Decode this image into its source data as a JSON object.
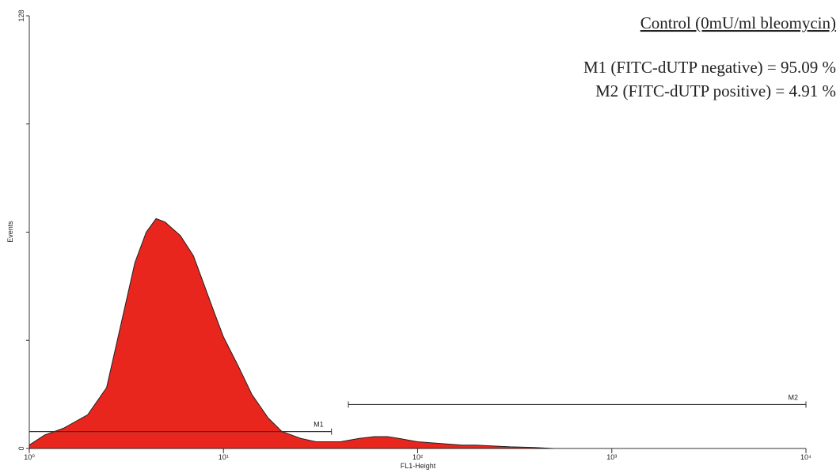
{
  "chart_data": {
    "type": "area",
    "title": "Control (0mU/ml bleomycin)",
    "annotations": [
      "M1 (FITC-dUTP negative) = 95.09 %",
      "M2 (FITC-dUTP positive) = 4.91 %"
    ],
    "x_label": "FL1-Height",
    "y_label": "Events",
    "x_scale": "log",
    "color": "#e8261e",
    "x": [
      1,
      1.2,
      1.5,
      2,
      2.5,
      3,
      3.5,
      4,
      4.5,
      5,
      6,
      7,
      8,
      9,
      10,
      12,
      14,
      17,
      20,
      25,
      30,
      40,
      50,
      60,
      70,
      80,
      100,
      130,
      170,
      200,
      300,
      400,
      500
    ],
    "values": [
      1,
      4,
      6,
      10,
      18,
      38,
      55,
      64,
      68,
      67,
      63,
      57,
      48,
      40,
      33,
      24,
      16,
      9,
      5,
      3,
      2,
      2,
      3,
      3.5,
      3.5,
      3,
      2,
      1.5,
      1,
      1,
      0.5,
      0.3,
      0
    ],
    "xlim": [
      1,
      10000
    ],
    "xticks": [
      {
        "value": 1,
        "label": "10⁰"
      },
      {
        "value": 10,
        "label": "10¹"
      },
      {
        "value": 100,
        "label": "10²"
      },
      {
        "value": 1000,
        "label": "10³"
      },
      {
        "value": 10000,
        "label": "10⁴"
      }
    ],
    "ylim": [
      0,
      128
    ],
    "yticks": [
      0,
      128
    ],
    "yminor": [
      32,
      64,
      96
    ],
    "markers": [
      {
        "name": "M1",
        "start": 1,
        "end": 36,
        "y": 5
      },
      {
        "name": "M2",
        "start": 44,
        "end": 10000,
        "y": 13
      }
    ]
  }
}
